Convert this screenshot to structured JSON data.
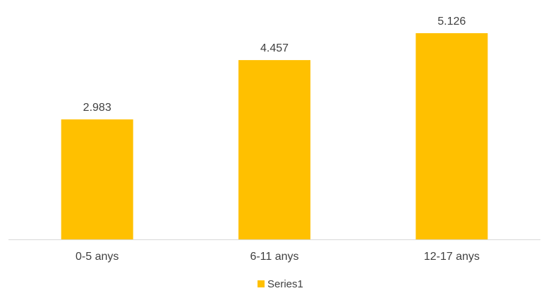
{
  "chart_data": {
    "type": "bar",
    "categories": [
      "0-5 anys",
      "6-11 anys",
      "12-17 anys"
    ],
    "series": [
      {
        "name": "Series1",
        "values": [
          2.983,
          4.457,
          5.126
        ],
        "data_labels": [
          "2.983",
          "4.457",
          "5.126"
        ],
        "color": "#FFC000"
      }
    ],
    "ylim": [
      0,
      5.6
    ],
    "grid": false,
    "legend": "bottom",
    "axis_color": "#D9D9D9"
  }
}
